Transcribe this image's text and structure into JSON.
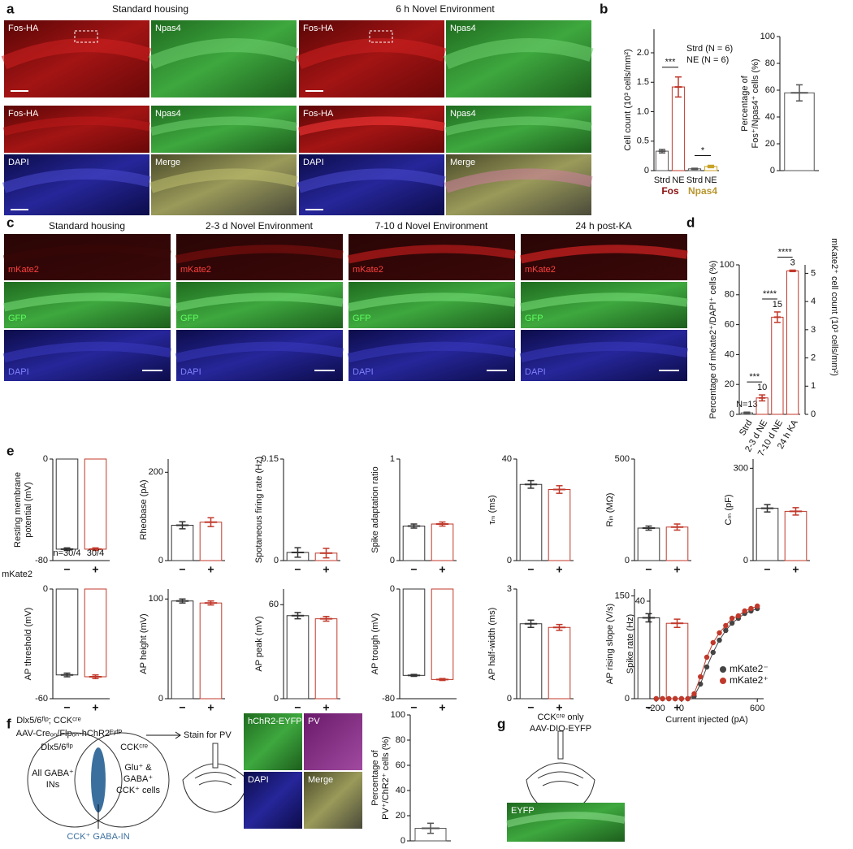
{
  "figure": {
    "panel_labels": [
      "a",
      "b",
      "c",
      "d",
      "e",
      "f",
      "g"
    ],
    "a": {
      "conditions": [
        "Standard housing",
        "6 h Novel Environment"
      ],
      "top_tiles": [
        "Fos-HA",
        "Npas4"
      ],
      "zoom_tiles": [
        "Fos-HA",
        "Npas4",
        "DAPI",
        "Merge"
      ]
    },
    "c": {
      "conditions": [
        "Standard housing",
        "2-3 d Novel Environment",
        "7-10 d Novel Environment",
        "24 h post-KA"
      ],
      "rows": [
        "mKate2",
        "GFP",
        "DAPI"
      ]
    },
    "e": {
      "row_label": "mKate2"
    },
    "f": {
      "genotype": "Dlx5/6ᶠˡᵖ; CCKᶜʳᵉ",
      "virus": "AAV-Creₒₙ/Flpₒₙ-hChR2ᴱʸᶠᴾ",
      "stain": "Stain for PV",
      "venn_left": "Dlx5/6ᶠˡᵖ",
      "venn_right": "CCKᶜʳᵉ",
      "left_set": [
        "All GABA⁺",
        "INs"
      ],
      "right_set": [
        "Glu⁺ &",
        "GABA⁺",
        "CCK⁺ cells"
      ],
      "overlap": "CCK⁺ GABA-IN",
      "tiles": [
        "hChR2-EYFP",
        "PV",
        "DAPI",
        "Merge"
      ]
    },
    "g": {
      "genotype": "CCKᶜʳᵉ only",
      "virus": "AAV-DIO-EYFP",
      "tile": "EYFP"
    }
  },
  "chart_data": [
    {
      "type": "bar",
      "ylabel": [
        "Cell count (10³ cells/mm²)"
      ],
      "categories": [
        "Strd",
        "NE",
        "Strd",
        "NE"
      ],
      "values": [
        0.33,
        1.42,
        0.03,
        0.07
      ],
      "errors": [
        0.03,
        0.17,
        0.01,
        0.02
      ],
      "colors": [
        "#555555",
        "#c0392b",
        "#555555",
        "#c9a227"
      ],
      "groups": [
        {
          "label": "Fos",
          "color": "#8b1010"
        },
        {
          "label": "Npas4",
          "color": "#b8962e"
        }
      ],
      "notes": [
        "Strd (N = 6)",
        "NE (N = 6)"
      ],
      "significance": [
        {
          "label": "***",
          "pair": [
            0,
            1
          ]
        },
        {
          "label": "*",
          "pair": [
            2,
            3
          ]
        }
      ],
      "ylim": [
        0,
        2.4
      ],
      "yticks": [
        0,
        0.5,
        {
          "value": 1,
          "label": "1.0"
        },
        1.5,
        {
          "value": 2,
          "label": "2.0"
        }
      ]
    },
    {
      "type": "bar",
      "ylabel": [
        "Percentage of",
        "Fos⁺/Npas4⁺ cells (%)"
      ],
      "categories": [
        null
      ],
      "values": [
        58
      ],
      "errors": [
        6
      ],
      "colors": [
        "#555555"
      ],
      "ylim": [
        0,
        100
      ],
      "yticks": [
        0,
        20,
        40,
        60,
        80,
        100
      ]
    },
    {
      "type": "bar",
      "ylabel": [
        "Percentage of mKate2⁺/DAPI⁺ cells (%)"
      ],
      "y2label": "mKate2⁺ cell count (10³ cells/mm²)",
      "categories": [
        "Strd",
        "2-3 d NE",
        "7-10 d NE",
        "24 h KA"
      ],
      "values": [
        1,
        11,
        65,
        96
      ],
      "errors": [
        0.5,
        2,
        3.5,
        0.5
      ],
      "colors": [
        "#555555",
        "#c0392b",
        "#c0392b",
        "#c0392b"
      ],
      "n_labels": [
        "N=13",
        "10",
        "15",
        "3"
      ],
      "significance": [
        {
          "label": "***",
          "pair": [
            0,
            1
          ]
        },
        {
          "label": "****",
          "pair": [
            1,
            2
          ]
        },
        {
          "label": "****",
          "pair": [
            2,
            3
          ]
        }
      ],
      "ylim": [
        0,
        100
      ],
      "yticks": [
        0,
        20,
        40,
        60,
        80,
        100
      ],
      "y2lim": [
        0,
        5.3
      ],
      "y2ticks": [
        0,
        1,
        2,
        3,
        4,
        5
      ]
    },
    {
      "type": "bar",
      "ylabel": [
        "Resting membrane",
        "potential (mV)"
      ],
      "categories": [
        "−",
        "+"
      ],
      "values": [
        -71,
        -71
      ],
      "errors": [
        1,
        1
      ],
      "colors": [
        "#333333",
        "#c0392b"
      ],
      "n_labels": [
        "n=30/4",
        "30/4"
      ],
      "ylim": [
        -80,
        0
      ],
      "yticks": [
        -80,
        0
      ]
    },
    {
      "type": "bar",
      "ylabel": [
        "Rheobase (pA)"
      ],
      "categories": [
        "−",
        "+"
      ],
      "values": [
        80,
        87
      ],
      "errors": [
        8,
        10
      ],
      "colors": [
        "#333333",
        "#c0392b"
      ],
      "ylim": [
        0,
        230
      ],
      "yticks": [
        0,
        200
      ]
    },
    {
      "type": "bar",
      "ylabel": [
        "Spotaneous firing rate (Hz)"
      ],
      "categories": [
        "−",
        "+"
      ],
      "values": [
        0.012,
        0.011
      ],
      "errors": [
        0.007,
        0.007
      ],
      "colors": [
        "#333333",
        "#c0392b"
      ],
      "ylim": [
        0,
        0.15
      ],
      "yticks": [
        0,
        0.15
      ]
    },
    {
      "type": "bar",
      "ylabel": [
        "Spike adaptation ratio"
      ],
      "categories": [
        "−",
        "+"
      ],
      "values": [
        0.34,
        0.36
      ],
      "errors": [
        0.02,
        0.02
      ],
      "colors": [
        "#333333",
        "#c0392b"
      ],
      "ylim": [
        0,
        1
      ],
      "yticks": [
        0,
        1
      ]
    },
    {
      "type": "bar",
      "ylabel": [
        "τₘ (ms)"
      ],
      "categories": [
        "−",
        "+"
      ],
      "values": [
        30,
        28
      ],
      "errors": [
        1.5,
        1.5
      ],
      "colors": [
        "#333333",
        "#c0392b"
      ],
      "ylim": [
        0,
        40
      ],
      "yticks": [
        0,
        40
      ]
    },
    {
      "type": "bar",
      "ylabel": [
        "Rᵢₙ (MΩ)"
      ],
      "categories": [
        "−",
        "+"
      ],
      "values": [
        160,
        165
      ],
      "errors": [
        10,
        15
      ],
      "colors": [
        "#333333",
        "#c0392b"
      ],
      "ylim": [
        0,
        500
      ],
      "yticks": [
        0,
        500
      ]
    },
    {
      "type": "bar",
      "ylabel": [
        "Cₘ (pF)"
      ],
      "categories": [
        "−",
        "+"
      ],
      "values": [
        170,
        160
      ],
      "errors": [
        12,
        12
      ],
      "colors": [
        "#333333",
        "#c0392b"
      ],
      "ylim": [
        0,
        330
      ],
      "yticks": [
        0,
        300
      ]
    },
    {
      "type": "bar",
      "ylabel": [
        "AP threshold (mV)"
      ],
      "categories": [
        "−",
        "+"
      ],
      "values": [
        -47,
        -48
      ],
      "errors": [
        1,
        1
      ],
      "colors": [
        "#333333",
        "#c0392b"
      ],
      "ylim": [
        -60,
        0
      ],
      "yticks": [
        -60,
        0
      ]
    },
    {
      "type": "bar",
      "ylabel": [
        "AP height (mV)"
      ],
      "categories": [
        "−",
        "+"
      ],
      "values": [
        98,
        96
      ],
      "errors": [
        2,
        2
      ],
      "colors": [
        "#333333",
        "#c0392b"
      ],
      "ylim": [
        0,
        110
      ],
      "yticks": [
        0,
        100
      ]
    },
    {
      "type": "bar",
      "ylabel": [
        "AP peak (mV)"
      ],
      "categories": [
        "−",
        "+"
      ],
      "values": [
        53,
        51
      ],
      "errors": [
        2,
        1.5
      ],
      "colors": [
        "#333333",
        "#c0392b"
      ],
      "ylim": [
        0,
        70
      ],
      "yticks": [
        0,
        60
      ]
    },
    {
      "type": "bar",
      "ylabel": [
        "AP trough (mV)"
      ],
      "categories": [
        "−",
        "+"
      ],
      "values": [
        -63,
        -66
      ],
      "errors": [
        0.7,
        0.7
      ],
      "colors": [
        "#333333",
        "#c0392b"
      ],
      "ylim": [
        -80,
        0
      ],
      "yticks": [
        -80,
        0
      ]
    },
    {
      "type": "bar",
      "ylabel": [
        "AP half-width (ms)"
      ],
      "categories": [
        "−",
        "+"
      ],
      "values": [
        2.05,
        1.95
      ],
      "errors": [
        0.1,
        0.08
      ],
      "colors": [
        "#333333",
        "#c0392b"
      ],
      "ylim": [
        0,
        3
      ],
      "yticks": [
        0,
        3
      ]
    },
    {
      "type": "bar",
      "ylabel": [
        "AP rising slope (V/s)"
      ],
      "categories": [
        "−",
        "+"
      ],
      "values": [
        118,
        110
      ],
      "errors": [
        6,
        6
      ],
      "colors": [
        "#333333",
        "#c0392b"
      ],
      "ylim": [
        0,
        160
      ],
      "yticks": [
        0,
        150
      ]
    },
    {
      "type": "line",
      "ylabel": [
        "Spike rate (Hz)"
      ],
      "xlabel": "Current injected (pA)",
      "x": [
        -200,
        -150,
        -100,
        -50,
        0,
        50,
        100,
        150,
        200,
        250,
        300,
        350,
        400,
        450,
        500,
        550,
        600
      ],
      "series": [
        {
          "name": "mKate2⁻",
          "color": "#444444",
          "values": [
            0,
            0,
            0,
            0,
            0,
            0,
            1,
            6,
            13,
            19,
            24,
            28,
            31,
            33,
            35,
            36,
            37
          ]
        },
        {
          "name": "mKate2⁺",
          "color": "#c0392b",
          "values": [
            0,
            0,
            0,
            0,
            0,
            0,
            2,
            9,
            17,
            23,
            27,
            30,
            33,
            34,
            36,
            37,
            38
          ]
        }
      ],
      "legend": "lower right",
      "xlim": [
        -250,
        650
      ],
      "xticks": [
        -200,
        0,
        600
      ],
      "ylim": [
        0,
        45
      ],
      "yticks": [
        40
      ]
    },
    {
      "type": "bar",
      "ylabel": [
        "Percentage of",
        "PV⁺/ChR2⁺ cells (%)"
      ],
      "categories": [
        null
      ],
      "values": [
        10
      ],
      "errors": [
        4
      ],
      "colors": [
        "#555555"
      ],
      "ylim": [
        0,
        100
      ],
      "yticks": [
        0,
        20,
        40,
        60,
        80,
        100
      ]
    }
  ]
}
